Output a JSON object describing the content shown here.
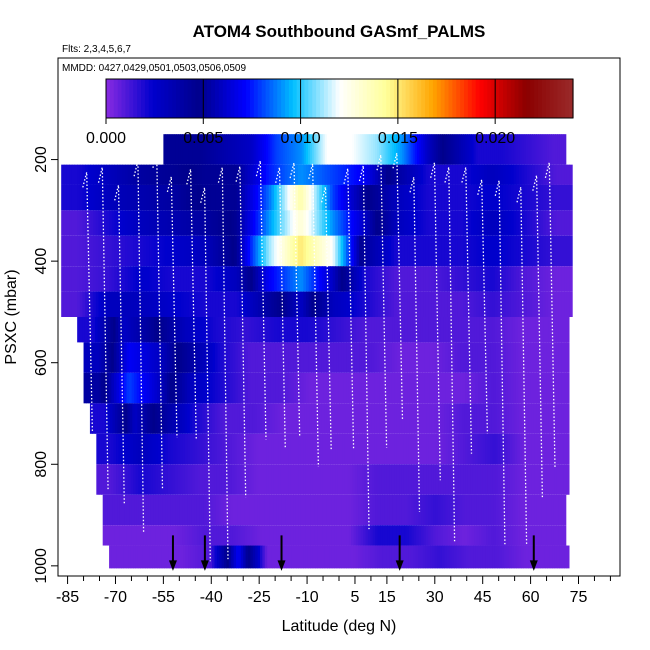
{
  "chart_data": {
    "type": "heatmap",
    "title": "ATOM4 Southbound GASmf_PALMS",
    "flights_note": "Flts: 2,3,4,5,6,7",
    "dates_note": "MMDD: 0427,0429,0501,0503,0506,0509",
    "xlabel": "Latitude (deg N)",
    "ylabel": "PSXC (mbar)",
    "xlim": [
      -88,
      88
    ],
    "ylim": [
      1020,
      0
    ],
    "x_ticks": [
      -85,
      -70,
      -55,
      -40,
      -25,
      -10,
      5,
      15,
      30,
      45,
      60,
      75
    ],
    "x_minor_ticks": [
      -80,
      -75,
      -65,
      -60,
      -50,
      -45,
      -35,
      -30,
      -20,
      -15,
      -5,
      0,
      10,
      20,
      25,
      35,
      40,
      50,
      55,
      65,
      70,
      80,
      85
    ],
    "y_ticks": [
      200,
      400,
      600,
      800,
      1000
    ],
    "colorbar": {
      "min": 0.0,
      "max": 0.024,
      "ticks": [
        0.0,
        0.005,
        0.01,
        0.015,
        0.02
      ],
      "tick_labels": [
        "0.000",
        "0.005",
        "0.010",
        "0.015",
        "0.020"
      ],
      "stops": [
        "#8a2be2",
        "#0000cd",
        "#00008b",
        "#0000ff",
        "#00bfff",
        "#ffffff",
        "#ffff99",
        "#ffa500",
        "#ff0000",
        "#8b0000",
        "#9a2a2a"
      ]
    },
    "pressure_levels": [
      180,
      230,
      270,
      320,
      370,
      420,
      470,
      520,
      570,
      620,
      670,
      720,
      770,
      820,
      870,
      920,
      970,
      1000
    ],
    "layers": [
      {
        "p_top": 150,
        "p_bot": 210,
        "x_start": -55,
        "x_end": 71,
        "values": [
          0.005,
          0.005,
          0.0055,
          0.006,
          0.008,
          0.009,
          0.012,
          0.012,
          0.011,
          0.009,
          0.006,
          0.004,
          0.002,
          0.002,
          0.0015,
          0.001
        ]
      },
      {
        "p_top": 210,
        "p_bot": 250,
        "x_start": -87,
        "x_end": 73,
        "values": [
          0.002,
          0.003,
          0.004,
          0.0045,
          0.005,
          0.005,
          0.0075,
          0.009,
          0.008,
          0.007,
          0.004,
          0.002,
          0.002,
          0.003,
          0.002,
          0.001
        ]
      },
      {
        "p_top": 250,
        "p_bot": 300,
        "x_start": -87,
        "x_end": 73,
        "values": [
          0.002,
          0.003,
          0.0035,
          0.004,
          0.005,
          0.005,
          0.0085,
          0.014,
          0.008,
          0.005,
          0.003,
          0.002,
          0.002,
          0.0025,
          0.002,
          0.0015
        ]
      },
      {
        "p_top": 300,
        "p_bot": 350,
        "x_start": -87,
        "x_end": 73,
        "values": [
          0.001,
          0.002,
          0.003,
          0.0035,
          0.004,
          0.005,
          0.009,
          0.013,
          0.009,
          0.006,
          0.003,
          0.002,
          0.002,
          0.003,
          0.002,
          0.001
        ]
      },
      {
        "p_top": 350,
        "p_bot": 410,
        "x_start": -87,
        "x_end": 73,
        "values": [
          0.001,
          0.0015,
          0.002,
          0.0025,
          0.003,
          0.005,
          0.011,
          0.015,
          0.012,
          0.004,
          0.002,
          0.002,
          0.002,
          0.0025,
          0.002,
          0.0015
        ]
      },
      {
        "p_top": 410,
        "p_bot": 460,
        "x_start": -87,
        "x_end": 73,
        "values": [
          0.001,
          0.0015,
          0.0025,
          0.002,
          0.002,
          0.003,
          0.007,
          0.009,
          0.006,
          0.002,
          0.001,
          0.001,
          0.0015,
          0.002,
          0.001,
          0.0005
        ]
      },
      {
        "p_top": 460,
        "p_bot": 510,
        "x_start": -87,
        "x_end": 73,
        "values": [
          0.001,
          0.003,
          0.003,
          0.0025,
          0.002,
          0.002,
          0.004,
          0.006,
          0.003,
          0.002,
          0.001,
          0.001,
          0.001,
          0.0015,
          0.001,
          0.0005
        ]
      },
      {
        "p_top": 510,
        "p_bot": 560,
        "x_start": -82,
        "x_end": 72,
        "values": [
          0.002,
          0.006,
          0.005,
          0.003,
          0.002,
          0.0015,
          0.002,
          0.002,
          0.0015,
          0.001,
          0.001,
          0.001,
          0.001,
          0.001,
          0.0005,
          0.0005
        ]
      },
      {
        "p_top": 560,
        "p_bot": 620,
        "x_start": -80,
        "x_end": 72,
        "values": [
          0.003,
          0.007,
          0.006,
          0.004,
          0.002,
          0.001,
          0.001,
          0.001,
          0.001,
          0.001,
          0.0005,
          0.0005,
          0.001,
          0.001,
          0.0005,
          0.0005
        ]
      },
      {
        "p_top": 620,
        "p_bot": 680,
        "x_start": -80,
        "x_end": 72,
        "values": [
          0.004,
          0.008,
          0.006,
          0.003,
          0.002,
          0.001,
          0.001,
          0.0005,
          0.0005,
          0.0005,
          0.0005,
          0.0005,
          0.0005,
          0.001,
          0.0005,
          0.0005
        ]
      },
      {
        "p_top": 680,
        "p_bot": 740,
        "x_start": -78,
        "x_end": 72,
        "values": [
          0.002,
          0.006,
          0.004,
          0.002,
          0.001,
          0.001,
          0.0005,
          0.0005,
          0.0005,
          0.0005,
          0.0005,
          0.0005,
          0.001,
          0.001,
          0.0005,
          0.0005
        ]
      },
      {
        "p_top": 740,
        "p_bot": 800,
        "x_start": -76,
        "x_end": 72,
        "values": [
          0.002,
          0.003,
          0.002,
          0.0015,
          0.001,
          0.0005,
          0.0005,
          0.0005,
          0.0005,
          0.0005,
          0.0005,
          0.0005,
          0.001,
          0.0015,
          0.0005,
          0.0005
        ]
      },
      {
        "p_top": 800,
        "p_bot": 860,
        "x_start": -76,
        "x_end": 72,
        "values": [
          0.001,
          0.002,
          0.0015,
          0.001,
          0.001,
          0.0005,
          0.0005,
          0.0005,
          0.0005,
          0.001,
          0.001,
          0.001,
          0.001,
          0.001,
          0.0005,
          0.0005
        ]
      },
      {
        "p_top": 860,
        "p_bot": 920,
        "x_start": -74,
        "x_end": 71,
        "values": [
          0.001,
          0.001,
          0.001,
          0.001,
          0.0005,
          0.0005,
          0.0005,
          0.0005,
          0.0005,
          0.001,
          0.001,
          0.0015,
          0.001,
          0.001,
          0.0005,
          0.0005
        ]
      },
      {
        "p_top": 920,
        "p_bot": 960,
        "x_start": -74,
        "x_end": 71,
        "values": [
          0.0005,
          0.0005,
          0.0005,
          0.001,
          0.001,
          0.0005,
          0.0005,
          0.0005,
          0.0005,
          0.002,
          0.002,
          0.001,
          0.0005,
          0.001,
          0.0005,
          0.0005
        ]
      },
      {
        "p_top": 960,
        "p_bot": 1005,
        "x_start": -72,
        "x_end": 72,
        "values": [
          0.0005,
          0.0005,
          0.0005,
          0.001,
          0.007,
          0.0005,
          0.0005,
          0.0005,
          0.0005,
          0.001,
          0.001,
          0.0015,
          0.001,
          0.001,
          0.0005,
          0.0005
        ]
      }
    ],
    "arrow_latitudes": [
      -52,
      -42,
      -18,
      19,
      61
    ],
    "legend_position": "top"
  }
}
